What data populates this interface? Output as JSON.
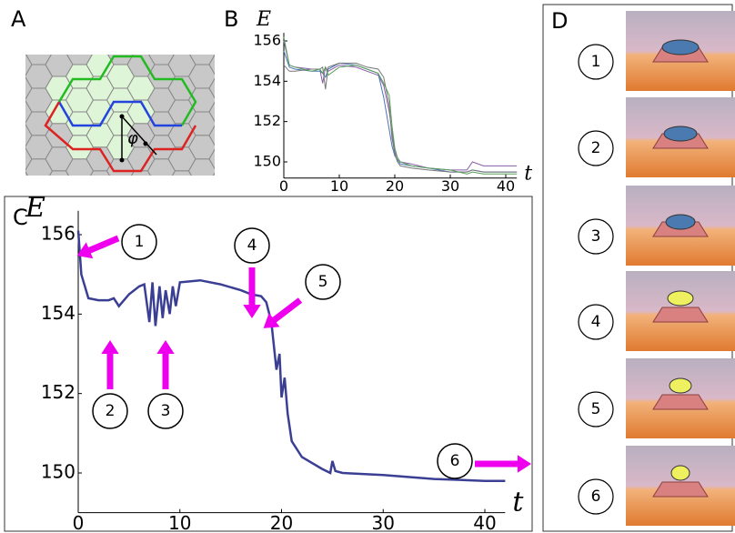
{
  "panels": {
    "a": "A",
    "b": "B",
    "c": "C",
    "d": "D"
  },
  "diagram": {
    "angle_label": "φ"
  },
  "chart_data": [
    {
      "type": "line",
      "x_label": "t",
      "y_label": "E",
      "x": [
        0,
        1,
        2,
        5,
        6.5,
        7,
        7.5,
        8,
        10,
        13,
        15,
        17,
        18,
        19,
        19.5,
        20,
        20.5,
        21,
        23,
        26,
        30,
        33,
        34,
        36,
        40,
        42
      ],
      "series": [
        {
          "color": "#8a5ca8",
          "values": [
            156,
            154.8,
            154.7,
            154.6,
            154.6,
            153.9,
            154.7,
            154.5,
            154.8,
            154.7,
            154.5,
            154.3,
            153.8,
            152.5,
            151.5,
            150.5,
            150.2,
            150,
            149.9,
            149.7,
            149.6,
            149.6,
            150,
            149.8,
            149.8,
            149.8
          ]
        },
        {
          "color": "#4a74b8",
          "values": [
            155.5,
            154.7,
            154.6,
            154.5,
            154.5,
            154.4,
            154.2,
            154.6,
            154.9,
            154.8,
            154.6,
            154.4,
            153.2,
            151.6,
            150.8,
            150.3,
            150.1,
            149.9,
            149.8,
            149.7,
            149.5,
            149.5,
            149.6,
            149.5,
            149.5,
            149.5
          ]
        },
        {
          "color": "#777777",
          "values": [
            154.8,
            154.5,
            154.5,
            154.6,
            154.6,
            154.7,
            153.6,
            154.7,
            154.9,
            154.9,
            154.7,
            154.6,
            154.2,
            152.8,
            151.2,
            150.4,
            150,
            149.8,
            149.7,
            149.6,
            149.5,
            149.5,
            149.6,
            149.5,
            149.5,
            149.5
          ]
        },
        {
          "color": "#5aa05a",
          "values": [
            156.2,
            154.8,
            154.7,
            154.5,
            154.6,
            154.4,
            154.7,
            154.3,
            154.7,
            154.8,
            154.6,
            154.4,
            153.9,
            153.3,
            151.8,
            150.7,
            150.2,
            150,
            149.8,
            149.7,
            149.6,
            149.4,
            149.5,
            149.4,
            149.4,
            149.4
          ]
        }
      ],
      "xlim": [
        0,
        42
      ],
      "ylim": [
        149.2,
        156.4
      ],
      "xticks": [
        0,
        10,
        20,
        30,
        40
      ],
      "yticks": [
        150,
        152,
        154,
        156
      ]
    },
    {
      "type": "line",
      "x_label": "t",
      "y_label": "E",
      "x": [
        0,
        0.3,
        1,
        2,
        3,
        3.5,
        4,
        5,
        6,
        6.5,
        7,
        7.3,
        7.6,
        8,
        8.3,
        8.6,
        9,
        9.3,
        9.6,
        10,
        12,
        14,
        16,
        17,
        18,
        18.5,
        19,
        19.5,
        19.8,
        20,
        20.3,
        20.6,
        21,
        22,
        24,
        24.8,
        25,
        25.3,
        26,
        30,
        35,
        40,
        42
      ],
      "series": [
        {
          "color": "#3b3f94",
          "values": [
            156.1,
            155,
            154.4,
            154.35,
            154.35,
            154.4,
            154.2,
            154.5,
            154.7,
            154.75,
            153.8,
            154.8,
            153.7,
            154.7,
            153.9,
            154.6,
            154,
            154.7,
            154.2,
            154.8,
            154.85,
            154.75,
            154.6,
            154.5,
            154.45,
            154.3,
            153.8,
            152.6,
            153,
            151.9,
            152.4,
            151.5,
            150.8,
            150.4,
            150.1,
            150,
            150.3,
            150.05,
            150,
            149.95,
            149.85,
            149.8,
            149.8
          ]
        }
      ],
      "xlim": [
        0,
        42
      ],
      "ylim": [
        149,
        156.6
      ],
      "xticks": [
        0,
        10,
        20,
        30,
        40
      ],
      "yticks": [
        150,
        152,
        154,
        156
      ],
      "annotations": [
        "1",
        "2",
        "3",
        "4",
        "5",
        "6"
      ]
    }
  ],
  "snapshots": [
    "1",
    "2",
    "3",
    "4",
    "5",
    "6"
  ]
}
